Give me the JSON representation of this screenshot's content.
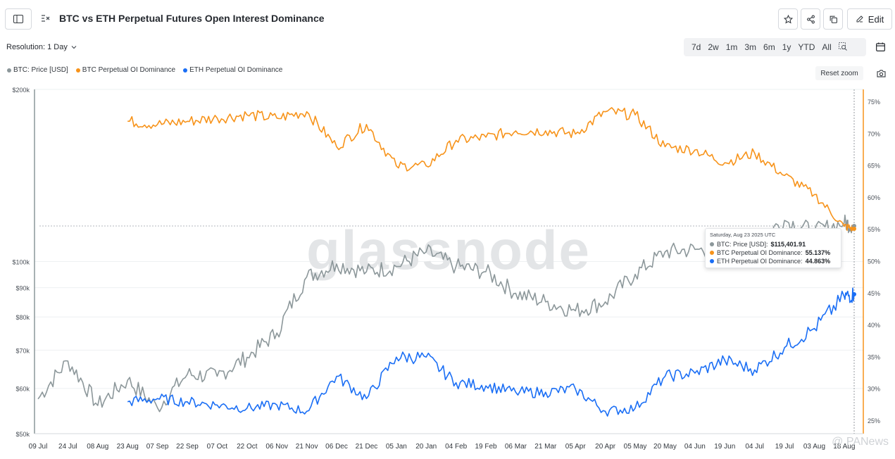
{
  "header": {
    "title": "BTC vs ETH Perpetual Futures Open Interest Dominance",
    "edit_label": "Edit"
  },
  "controls": {
    "resolution_label": "Resolution: 1 Day",
    "ranges": [
      "7d",
      "2w",
      "1m",
      "3m",
      "6m",
      "1y",
      "YTD",
      "All"
    ],
    "reset_zoom_label": "Reset zoom"
  },
  "legend": [
    {
      "label": "BTC: Price [USD]",
      "color": "#8c979a"
    },
    {
      "label": "BTC Perpetual OI Dominance",
      "color": "#f7931a"
    },
    {
      "label": "ETH Perpetual OI Dominance",
      "color": "#1a6ef5"
    }
  ],
  "tooltip": {
    "date": "Saturday, Aug 23 2025 UTC",
    "rows": [
      {
        "label": "BTC: Price [USD]:",
        "value": "$115,401.91",
        "color": "#8c979a"
      },
      {
        "label": "BTC Perpetual OI Dominance:",
        "value": "55.137%",
        "color": "#f7931a"
      },
      {
        "label": "ETH Perpetual OI Dominance:",
        "value": "44.863%",
        "color": "#1a6ef5"
      }
    ]
  },
  "watermark": "glassnode",
  "source_badge": "PANews",
  "chart_data": {
    "type": "line",
    "x": [
      "2024-07-09",
      "2024-07-24",
      "2024-08-08",
      "2024-08-23",
      "2024-09-07",
      "2024-09-22",
      "2024-10-07",
      "2024-10-22",
      "2024-11-06",
      "2024-11-21",
      "2024-12-06",
      "2024-12-21",
      "2025-01-05",
      "2025-01-20",
      "2025-02-04",
      "2025-02-19",
      "2025-03-06",
      "2025-03-21",
      "2025-04-05",
      "2025-04-20",
      "2025-05-05",
      "2025-05-20",
      "2025-06-04",
      "2025-06-19",
      "2025-07-04",
      "2025-07-19",
      "2025-08-03",
      "2025-08-18",
      "2025-08-23"
    ],
    "xticks": [
      "09 Jul",
      "24 Jul",
      "08 Aug",
      "23 Aug",
      "07 Sep",
      "22 Sep",
      "07 Oct",
      "22 Oct",
      "06 Nov",
      "21 Nov",
      "06 Dec",
      "21 Dec",
      "05 Jan",
      "20 Jan",
      "04 Feb",
      "19 Feb",
      "06 Mar",
      "21 Mar",
      "05 Apr",
      "20 Apr",
      "05 May",
      "20 May",
      "04 Jun",
      "19 Jun",
      "04 Jul",
      "19 Jul",
      "03 Aug",
      "18 Aug"
    ],
    "series": [
      {
        "name": "BTC: Price [USD]",
        "axis": "left",
        "color": "#8c979a",
        "values": [
          57500,
          67000,
          56000,
          62000,
          55500,
          63500,
          63000,
          68000,
          75000,
          94000,
          99000,
          96000,
          98000,
          104000,
          98000,
          96000,
          88000,
          85000,
          82000,
          85000,
          95000,
          104000,
          105000,
          104000,
          108000,
          118000,
          113000,
          117000,
          115401.91
        ]
      },
      {
        "name": "BTC Perpetual OI Dominance",
        "axis": "right",
        "color": "#f7931a",
        "values": [
          null,
          null,
          null,
          72.0,
          71.5,
          72.0,
          72.5,
          73.0,
          72.5,
          73.5,
          68.0,
          71.5,
          65.0,
          65.0,
          69.0,
          69.5,
          70.5,
          70.5,
          70.0,
          73.5,
          73.0,
          68.0,
          67.5,
          65.5,
          67.0,
          63.5,
          60.5,
          55.5,
          55.137
        ]
      },
      {
        "name": "ETH Perpetual OI Dominance",
        "axis": "right",
        "color": "#1a6ef5",
        "values": [
          null,
          null,
          null,
          28.0,
          28.5,
          28.0,
          27.5,
          27.0,
          27.5,
          26.5,
          32.0,
          28.5,
          35.0,
          35.0,
          31.0,
          30.5,
          29.5,
          29.5,
          30.0,
          26.5,
          27.0,
          32.0,
          32.5,
          34.5,
          33.0,
          36.5,
          39.5,
          44.5,
          44.863
        ]
      }
    ],
    "left_axis": {
      "scale": "log",
      "ticks": [
        "$50k",
        "$60k",
        "$70k",
        "$80k",
        "$90k",
        "$100k",
        "$200k"
      ],
      "range": [
        50000,
        200000
      ]
    },
    "right_axis": {
      "ticks": [
        "25%",
        "30%",
        "35%",
        "40%",
        "45%",
        "50%",
        "55%",
        "60%",
        "65%",
        "70%",
        "75%"
      ],
      "range": [
        23,
        77
      ]
    },
    "grid": true
  }
}
